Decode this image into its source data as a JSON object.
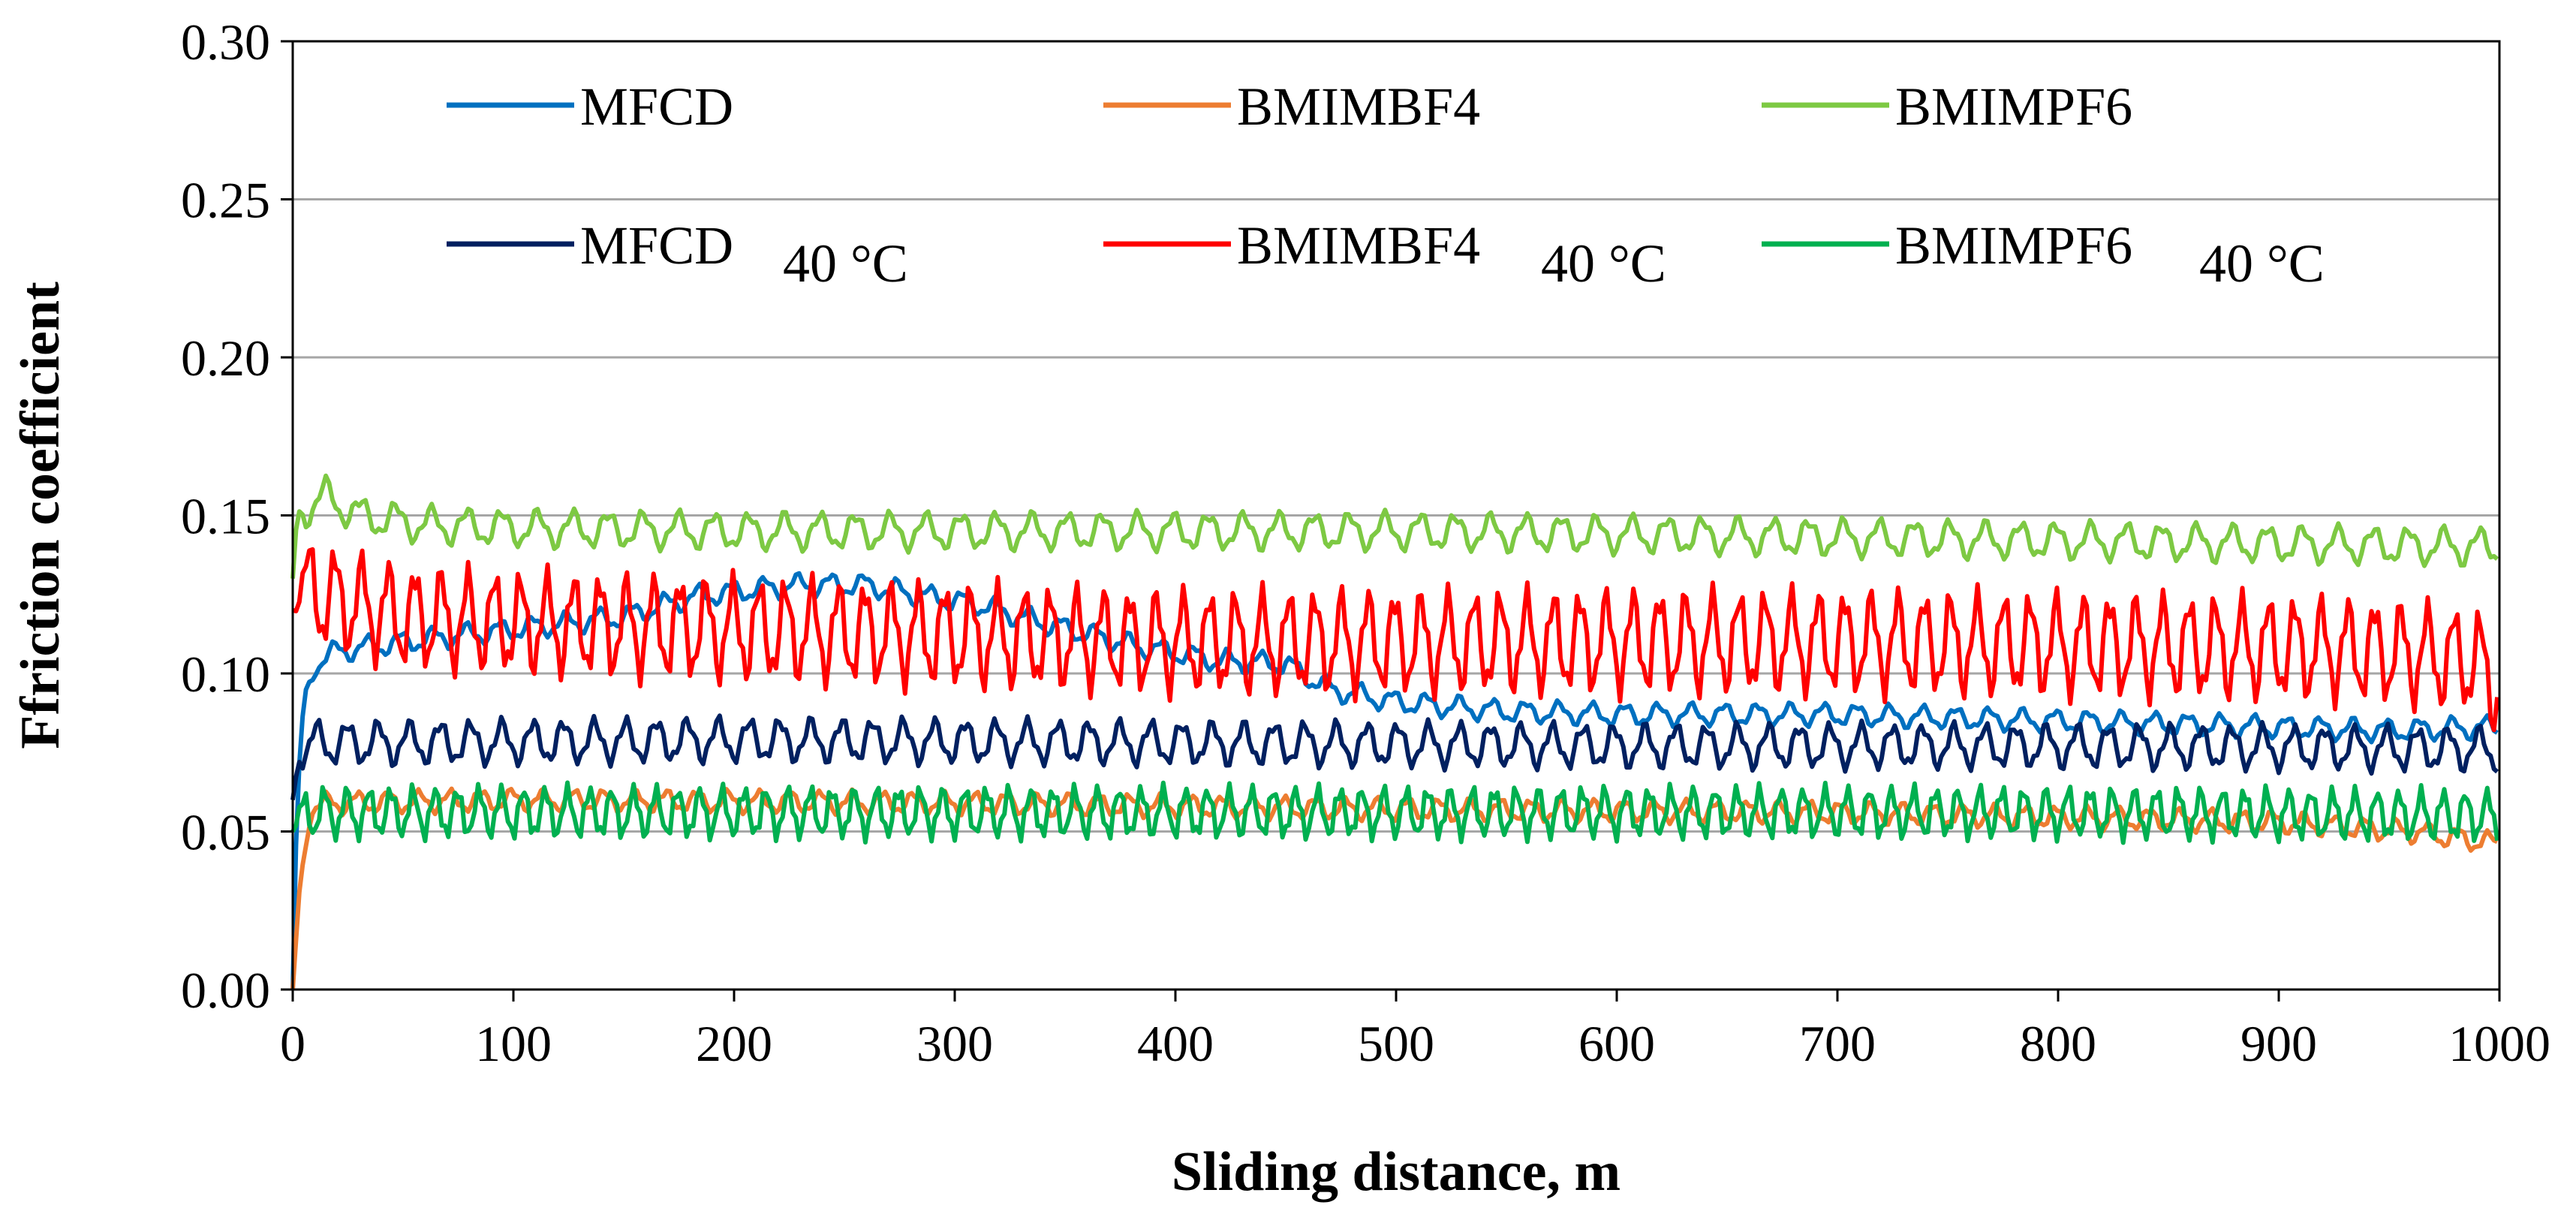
{
  "chart_data": {
    "type": "line",
    "title": "",
    "xlabel": "Sliding distance, m",
    "ylabel": "Ffriction coefficient",
    "xlim": [
      0,
      1000
    ],
    "ylim": [
      0,
      0.3
    ],
    "xticks": [
      "0",
      "100",
      "200",
      "300",
      "400",
      "500",
      "600",
      "700",
      "800",
      "900",
      "1000"
    ],
    "yticks": [
      "0.00",
      "0.05",
      "0.10",
      "0.15",
      "0.20",
      "0.25",
      "0.30"
    ],
    "grid": "horizontal",
    "legend_position": "top",
    "series": [
      {
        "name": "MFCD",
        "suffix": "",
        "color": "#0070C0",
        "osc_amp": 0.003,
        "osc_period": 15,
        "x": [
          0,
          2,
          5,
          10,
          20,
          50,
          100,
          150,
          180,
          200,
          230,
          260,
          290,
          310,
          340,
          380,
          420,
          450,
          470,
          500,
          550,
          600,
          650,
          700,
          750,
          800,
          850,
          900,
          950,
          1000
        ],
        "y": [
          0.0,
          0.06,
          0.09,
          0.103,
          0.107,
          0.11,
          0.114,
          0.118,
          0.124,
          0.126,
          0.128,
          0.128,
          0.124,
          0.122,
          0.116,
          0.109,
          0.104,
          0.103,
          0.095,
          0.091,
          0.088,
          0.087,
          0.087,
          0.087,
          0.086,
          0.085,
          0.084,
          0.083,
          0.082,
          0.083
        ]
      },
      {
        "name": "BMIMBF4",
        "suffix": "",
        "color": "#ED7D31",
        "osc_amp": 0.003,
        "osc_period": 14,
        "x": [
          0,
          3,
          8,
          20,
          100,
          300,
          500,
          700,
          900,
          960,
          1000
        ],
        "y": [
          0.0,
          0.03,
          0.058,
          0.059,
          0.06,
          0.059,
          0.057,
          0.056,
          0.053,
          0.05,
          0.046
        ]
      },
      {
        "name": "BMIMPF6",
        "suffix": "",
        "color": "#7DC943",
        "osc_amp": 0.005,
        "osc_period": 16,
        "x": [
          0,
          2,
          5,
          15,
          30,
          60,
          100,
          200,
          300,
          400,
          500,
          600,
          700,
          800,
          900,
          1000
        ],
        "y": [
          0.13,
          0.15,
          0.152,
          0.156,
          0.15,
          0.147,
          0.146,
          0.145,
          0.145,
          0.145,
          0.145,
          0.144,
          0.143,
          0.142,
          0.141,
          0.14
        ]
      },
      {
        "name": "MFCD",
        "suffix": "40 °C",
        "color": "#002060",
        "osc_amp": 0.006,
        "osc_period": 14,
        "x": [
          0,
          3,
          10,
          50,
          200,
          400,
          600,
          800,
          1000
        ],
        "y": [
          0.06,
          0.075,
          0.078,
          0.078,
          0.079,
          0.078,
          0.077,
          0.077,
          0.076
        ]
      },
      {
        "name": "BMIMBF4",
        "suffix": "40 °C",
        "color": "#FF0000",
        "osc_amp": 0.014,
        "osc_period": 12,
        "x": [
          0,
          3,
          10,
          50,
          100,
          200,
          300,
          400,
          500,
          600,
          700,
          800,
          900,
          950,
          990,
          1000
        ],
        "y": [
          0.12,
          0.128,
          0.125,
          0.118,
          0.116,
          0.114,
          0.112,
          0.11,
          0.11,
          0.11,
          0.11,
          0.109,
          0.108,
          0.107,
          0.104,
          0.096
        ]
      },
      {
        "name": "BMIMPF6",
        "suffix": "40 °C",
        "color": "#00B050",
        "osc_amp": 0.007,
        "osc_period": 10,
        "x": [
          0,
          3,
          10,
          50,
          200,
          400,
          600,
          800,
          1000
        ],
        "y": [
          0.05,
          0.055,
          0.056,
          0.056,
          0.056,
          0.056,
          0.056,
          0.056,
          0.055
        ]
      }
    ]
  }
}
